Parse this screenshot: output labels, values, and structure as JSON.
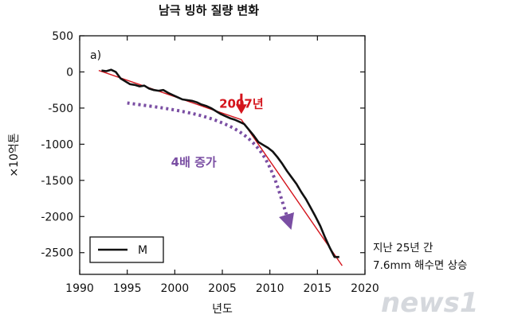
{
  "chart_data": {
    "type": "line",
    "title": "남극 빙하 질량 변화",
    "panel_label": "a)",
    "xlabel": "년도",
    "ylabel": "×10억톤",
    "xlim": [
      1990,
      2020
    ],
    "ylim": [
      -2800,
      500
    ],
    "x_ticks": [
      1990,
      1995,
      2000,
      2005,
      2010,
      2015,
      2020
    ],
    "x_tick_labels": [
      "1990",
      "1995",
      "2000",
      "2005",
      "2010",
      "2015",
      "2020"
    ],
    "y_ticks": [
      500,
      0,
      -500,
      -1000,
      -1500,
      -2000,
      -2500
    ],
    "y_tick_labels": [
      "500",
      "0",
      "-500",
      "-1000",
      "-1500",
      "-2000",
      "-2500"
    ],
    "legend": {
      "entries": [
        "M"
      ],
      "position": "bottom-left"
    },
    "series": [
      {
        "name": "M",
        "color": "#111111",
        "x": [
          1992.3,
          1992.8,
          1993.3,
          1993.8,
          1994.3,
          1994.8,
          1995.3,
          1995.8,
          1996.3,
          1996.8,
          1997.3,
          1997.8,
          1998.3,
          1998.8,
          1999.3,
          1999.8,
          2000.3,
          2000.8,
          2001.3,
          2001.8,
          2002.3,
          2002.8,
          2003.3,
          2003.8,
          2004.3,
          2004.8,
          2005.3,
          2005.8,
          2006.3,
          2006.8,
          2007.3,
          2007.8,
          2008.3,
          2008.8,
          2009.3,
          2009.8,
          2010.3,
          2010.8,
          2011.3,
          2011.8,
          2012.3,
          2012.8,
          2013.3,
          2013.8,
          2014.3,
          2014.8,
          2015.3,
          2015.8,
          2016.3,
          2016.8,
          2017.3
        ],
        "y": [
          20,
          10,
          30,
          0,
          -90,
          -130,
          -170,
          -180,
          -200,
          -190,
          -230,
          -250,
          -260,
          -250,
          -290,
          -320,
          -350,
          -380,
          -390,
          -400,
          -420,
          -450,
          -470,
          -500,
          -540,
          -580,
          -610,
          -640,
          -660,
          -690,
          -720,
          -800,
          -880,
          -970,
          -1010,
          -1050,
          -1100,
          -1180,
          -1270,
          -1370,
          -1460,
          -1550,
          -1660,
          -1760,
          -1880,
          -2000,
          -2130,
          -2290,
          -2430,
          -2560,
          -2560
        ]
      },
      {
        "name": "trend",
        "color": "#d4141c",
        "x": [
          1992.0,
          2007.0,
          2017.6
        ],
        "y": [
          20,
          -660,
          -2680
        ]
      }
    ],
    "annotations": [
      {
        "text": "2007년",
        "color": "#d4141c",
        "x": 2007.0,
        "y": -450
      },
      {
        "text": "4배 증가",
        "color": "#7a4ea3",
        "x": 2002.0,
        "y": -1250
      },
      {
        "text": "지난 25년 간",
        "color": "#111111"
      },
      {
        "text": "7.6mm 해수면 상승",
        "color": "#111111"
      }
    ],
    "purple_arrow": {
      "x": [
        1995.0,
        2000.0,
        2004.0,
        2007.5,
        2010.0,
        2012.0
      ],
      "y": [
        -430,
        -520,
        -640,
        -860,
        -1250,
        -2080
      ]
    },
    "red_arrow": {
      "x": 2007.0,
      "y_from": -300,
      "y_to": -570
    }
  },
  "watermark": "news1",
  "colors": {
    "red": "#d4141c",
    "purple": "#7a4ea3",
    "line": "#111111"
  }
}
